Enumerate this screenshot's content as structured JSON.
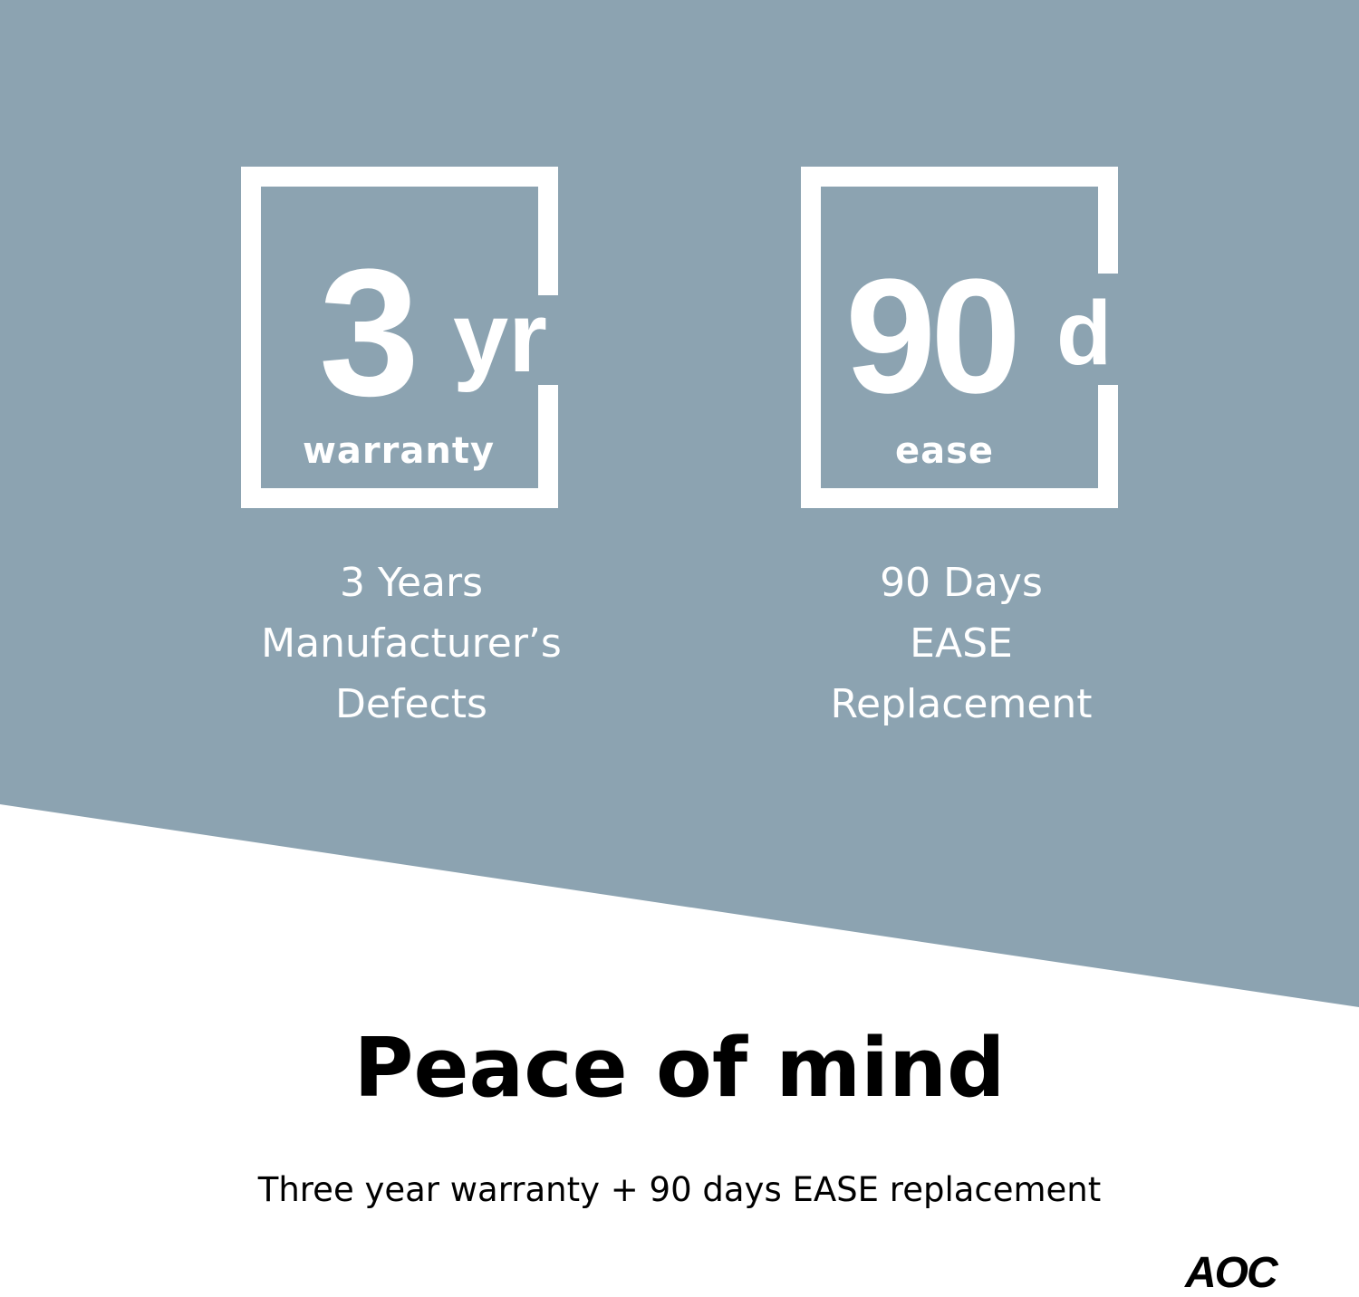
{
  "colors": {
    "panel": "#8ca3b1",
    "foreground": "#ffffff",
    "text": "#000000"
  },
  "badges": [
    {
      "number": "3",
      "unit": "yr",
      "label": "warranty",
      "description": [
        "3 Years",
        "Manufacturer’s",
        "Defects"
      ]
    },
    {
      "number": "90",
      "unit": "d",
      "label": "ease",
      "description": [
        "90 Days",
        "EASE",
        "Replacement"
      ]
    }
  ],
  "headline": "Peace of mind",
  "subheadline": "Three year warranty + 90 days EASE replacement",
  "logo": "AOC"
}
